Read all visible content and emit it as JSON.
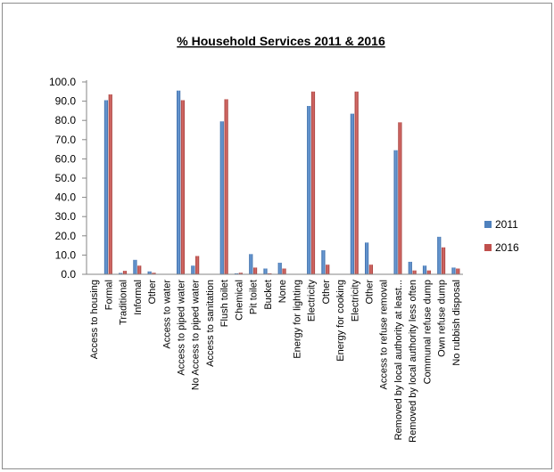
{
  "chart_data": {
    "type": "bar",
    "title": "% Household Services 2011 & 2016",
    "xlabel": "",
    "ylabel": "",
    "ylim": [
      0,
      100
    ],
    "yticks": [
      "0.0",
      "10.0",
      "20.0",
      "30.0",
      "40.0",
      "50.0",
      "60.0",
      "70.0",
      "80.0",
      "90.0",
      "100.0"
    ],
    "grid": false,
    "legend_position": "right",
    "categories": [
      "Access to housing",
      "Formal",
      "Traditional",
      "Informal",
      "Other",
      "Access to water",
      "Access to piped water",
      "No Access to piped water",
      "Access to sanitation",
      "Flush toilet",
      "Chemical",
      "Pit toilet",
      "Bucket",
      "None",
      "Energy for lighting",
      "Electricity",
      "Other",
      "Energy for cooking",
      "Electricity",
      "Other",
      "Access to refuse removal",
      "Removed by local authority at least...",
      "Removed by local authority less often",
      "Communal refuse dump",
      "Own refuse dump",
      "No rubbish disposal"
    ],
    "series": [
      {
        "name": "2011",
        "color": "#4f81bd",
        "values": [
          null,
          90.5,
          0.7,
          7.5,
          1.5,
          null,
          95.5,
          4.5,
          null,
          79.5,
          0.5,
          10.5,
          3.0,
          6.0,
          null,
          87.5,
          12.5,
          null,
          83.5,
          16.5,
          null,
          64.5,
          6.5,
          4.5,
          19.5,
          3.5
        ]
      },
      {
        "name": "2016",
        "color": "#c0504d",
        "values": [
          null,
          93.5,
          1.8,
          4.5,
          0.8,
          null,
          90.5,
          9.5,
          null,
          91.0,
          0.8,
          3.5,
          0.5,
          3.0,
          null,
          95.0,
          5.0,
          null,
          95.0,
          5.0,
          null,
          79.0,
          2.0,
          2.0,
          14.0,
          3.0
        ]
      }
    ]
  }
}
